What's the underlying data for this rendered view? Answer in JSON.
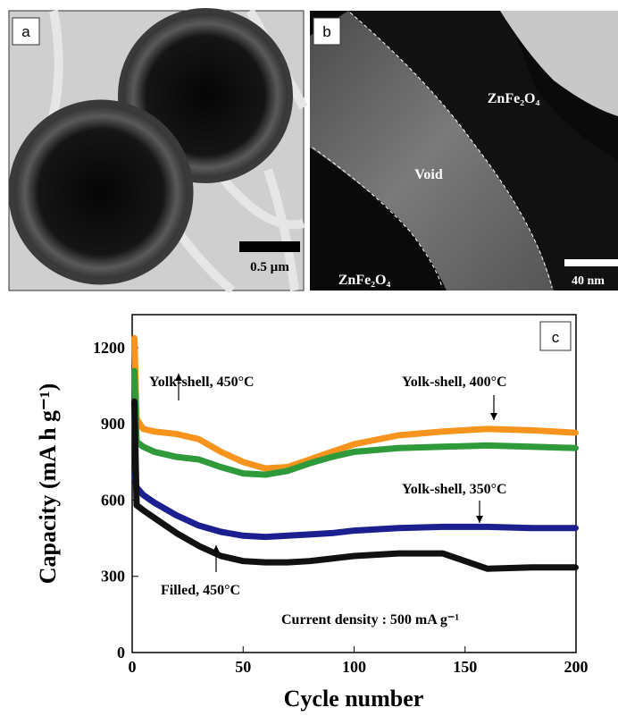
{
  "panels": {
    "a": {
      "label": "a",
      "scale_bar": "0.5 µm"
    },
    "b": {
      "label": "b",
      "region_top": "ZnFe₂O₄",
      "region_middle": "Void",
      "region_bottom": "ZnFe₂O₄",
      "scale_bar": "40 nm"
    }
  },
  "chart_data": {
    "type": "line",
    "panel_label": "c",
    "x_label": "Cycle number",
    "y_label": "Capacity (mA h g⁻¹)",
    "annotation": "Current density : 500 mA g⁻¹",
    "xlim": [
      0,
      200
    ],
    "xticks": [
      0,
      50,
      100,
      150,
      200
    ],
    "ylim": [
      0,
      1330
    ],
    "yticks": [
      0,
      300,
      600,
      900,
      1200
    ],
    "x": [
      1,
      2,
      5,
      10,
      20,
      30,
      40,
      50,
      60,
      70,
      80,
      90,
      100,
      120,
      140,
      160,
      180,
      200
    ],
    "series": [
      {
        "name": "Yolk-shell, 450°C",
        "color": "#f7941d",
        "values": [
          1240,
          920,
          880,
          870,
          860,
          840,
          790,
          750,
          725,
          730,
          760,
          790,
          820,
          855,
          870,
          880,
          875,
          865
        ]
      },
      {
        "name": "Yolk-shell, 400°C",
        "color": "#2e9a3a",
        "values": [
          1110,
          830,
          810,
          790,
          770,
          760,
          730,
          705,
          700,
          715,
          745,
          770,
          790,
          805,
          810,
          815,
          810,
          805
        ]
      },
      {
        "name": "Yolk-shell, 350°C",
        "color": "#1b1f8f",
        "values": [
          700,
          650,
          620,
          590,
          540,
          500,
          475,
          460,
          455,
          460,
          465,
          470,
          480,
          490,
          495,
          495,
          490,
          490
        ]
      },
      {
        "name": "Filled, 450°C",
        "color": "#111111",
        "values": [
          990,
          580,
          560,
          530,
          470,
          420,
          380,
          360,
          355,
          355,
          360,
          370,
          380,
          390,
          390,
          330,
          335,
          335
        ]
      }
    ]
  }
}
